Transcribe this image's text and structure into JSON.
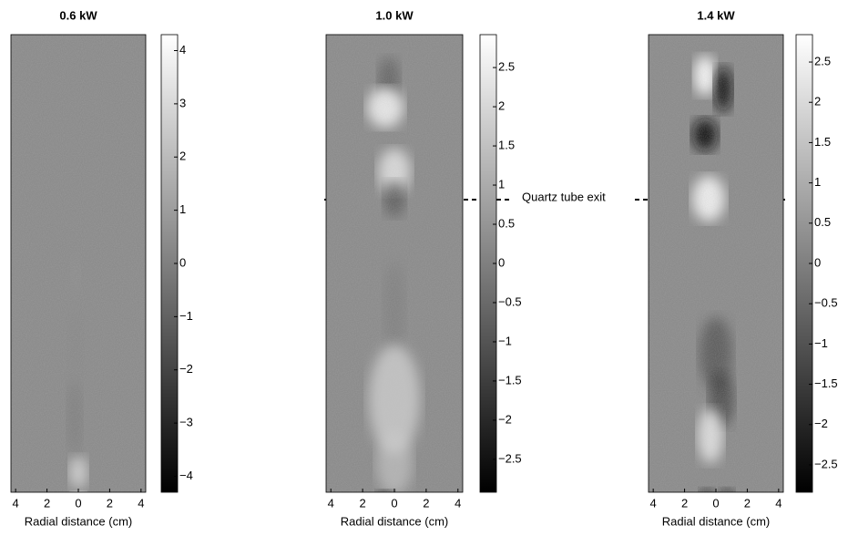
{
  "chart_data": [
    {
      "type": "image",
      "title": "0.6 kW",
      "xlabel": "Radial distance (cm)",
      "xlim": [
        -4.3,
        4.3
      ],
      "xticks": [
        {
          "value": -4,
          "label": "4"
        },
        {
          "value": -2,
          "label": "2"
        },
        0,
        2,
        4
      ],
      "ylim": [
        -4.3,
        4.3
      ],
      "yticks": [
        {
          "value": -4,
          "label": "−4"
        },
        {
          "value": -3,
          "label": "−3"
        },
        {
          "value": -2,
          "label": "−2"
        },
        {
          "value": -1,
          "label": "−1"
        },
        0,
        1,
        2,
        3,
        4
      ]
    },
    {
      "type": "image",
      "title": "1.0 kW",
      "xlabel": "Radial distance (cm)",
      "xlim": [
        -4.3,
        4.3
      ],
      "xticks": [
        {
          "value": -4,
          "label": "4"
        },
        {
          "value": -2,
          "label": "2"
        },
        0,
        2,
        4
      ],
      "ylim": [
        -2.92,
        2.92
      ],
      "yticks": [
        {
          "value": -2.5,
          "label": "−2.5"
        },
        {
          "value": -2,
          "label": "−2"
        },
        {
          "value": -1.5,
          "label": "−1.5"
        },
        {
          "value": -1,
          "label": "−1"
        },
        {
          "value": -0.5,
          "label": "−0.5"
        },
        0,
        0.5,
        1,
        1.5,
        2,
        2.5
      ],
      "annotation": "Quartz tube exit"
    },
    {
      "type": "image",
      "title": "1.4 kW",
      "xlabel": "Radial distance (cm)",
      "xlim": [
        -4.3,
        4.3
      ],
      "xticks": [
        {
          "value": -4,
          "label": "4"
        },
        {
          "value": -2,
          "label": "2"
        },
        0,
        2,
        4
      ],
      "ylim": [
        -2.84,
        2.84
      ],
      "yticks": [
        {
          "value": -2.5,
          "label": "−2.5"
        },
        {
          "value": -2,
          "label": "−2"
        },
        {
          "value": -1.5,
          "label": "−1.5"
        },
        {
          "value": -1,
          "label": "−1"
        },
        {
          "value": -0.5,
          "label": "−0.5"
        },
        0,
        0.5,
        1,
        1.5,
        2,
        2.5
      ]
    }
  ]
}
